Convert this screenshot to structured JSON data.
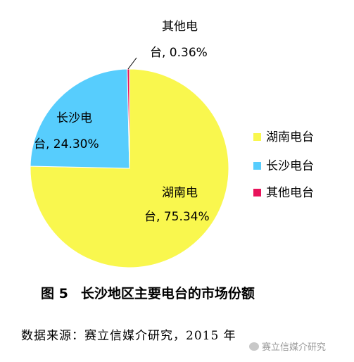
{
  "chart_data": {
    "type": "pie",
    "slices": [
      {
        "label_line1": "湖南电",
        "label_line2": "台, 75.34%",
        "legend": "湖南电台",
        "value": 75.34,
        "color": "#f9f74e"
      },
      {
        "label_line1": "长沙电",
        "label_line2": "台, 24.30%",
        "legend": "长沙电台",
        "value": 24.3,
        "color": "#57cdfd"
      },
      {
        "label_line1": "其他电",
        "label_line2": "台, 0.36%",
        "legend": "其他电台",
        "value": 0.36,
        "color": "#e8135b"
      }
    ],
    "legend_position": "right",
    "title": ""
  },
  "caption": {
    "number": "图 5",
    "text": "长沙地区主要电台的市场份额"
  },
  "source": "数据来源：赛立信媒介研究，2015 年",
  "watermark": "赛立信媒介研究"
}
